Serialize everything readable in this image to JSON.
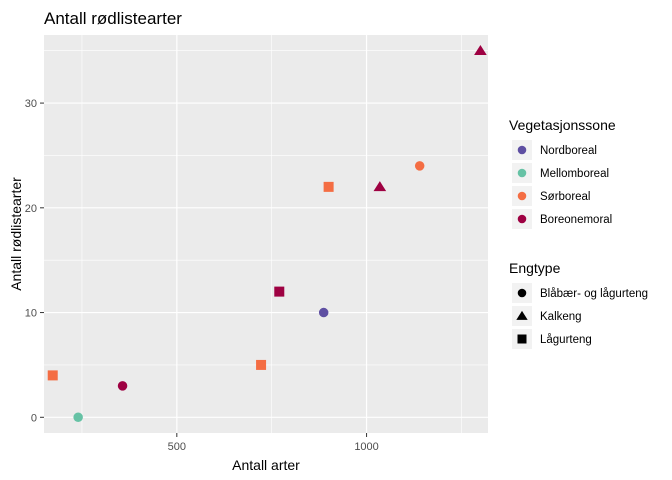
{
  "chart_data": {
    "type": "scatter",
    "title": "Antall rødlistearter",
    "xlabel": "Antall arter",
    "ylabel": "Antall rødlistearter",
    "xlim": [
      150,
      1320
    ],
    "ylim": [
      -1.5,
      36.5
    ],
    "x_ticks": [
      500,
      1000
    ],
    "y_ticks": [
      0,
      10,
      20,
      30
    ],
    "grid": true,
    "legend_position": "right",
    "color_legend": {
      "title": "Vegetasjonssone",
      "entries": [
        {
          "name": "Nordboreal",
          "color": "#5e4fa2"
        },
        {
          "name": "Mellomboreal",
          "color": "#66c2a5"
        },
        {
          "name": "Sørboreal",
          "color": "#f46d43"
        },
        {
          "name": "Boreonemoral",
          "color": "#9e0142"
        }
      ]
    },
    "shape_legend": {
      "title": "Engtype",
      "entries": [
        {
          "name": "Blåbær- og lågurteng",
          "shape": "circle"
        },
        {
          "name": "Kalkeng",
          "shape": "triangle"
        },
        {
          "name": "Lågurteng",
          "shape": "square"
        }
      ]
    },
    "points": [
      {
        "x": 1300,
        "y": 35,
        "zone": "Boreonemoral",
        "engtype": "Kalkeng"
      },
      {
        "x": 1140,
        "y": 24,
        "zone": "Sørboreal",
        "engtype": "Blåbær- og lågurteng"
      },
      {
        "x": 1035,
        "y": 22,
        "zone": "Boreonemoral",
        "engtype": "Kalkeng"
      },
      {
        "x": 900,
        "y": 22,
        "zone": "Sørboreal",
        "engtype": "Lågurteng"
      },
      {
        "x": 770,
        "y": 12,
        "zone": "Boreonemoral",
        "engtype": "Lågurteng"
      },
      {
        "x": 887,
        "y": 10,
        "zone": "Nordboreal",
        "engtype": "Blåbær- og lågurteng"
      },
      {
        "x": 722,
        "y": 5,
        "zone": "Sørboreal",
        "engtype": "Lågurteng"
      },
      {
        "x": 173,
        "y": 4,
        "zone": "Sørboreal",
        "engtype": "Lågurteng"
      },
      {
        "x": 357,
        "y": 3,
        "zone": "Boreonemoral",
        "engtype": "Blåbær- og lågurteng"
      },
      {
        "x": 240,
        "y": 0,
        "zone": "Mellomboreal",
        "engtype": "Blåbær- og lågurteng"
      }
    ]
  }
}
